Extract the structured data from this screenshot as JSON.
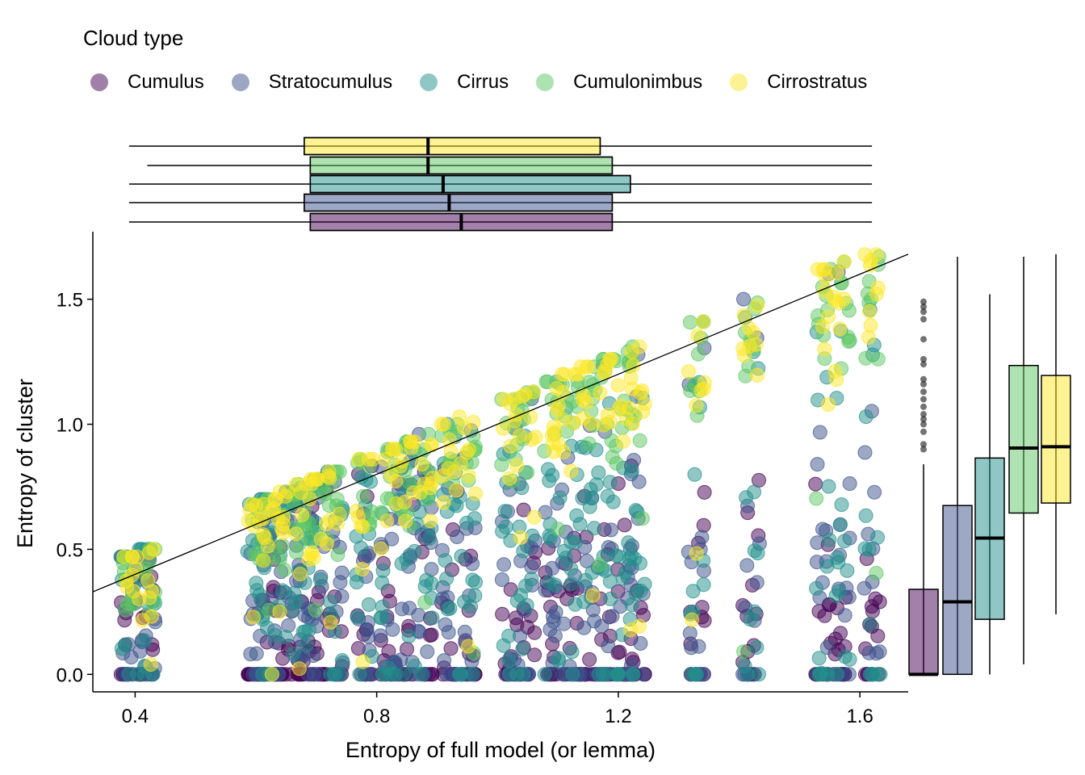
{
  "chart_data": {
    "type": "scatter",
    "title": "",
    "legend": {
      "title": "Cloud type",
      "placement": "top",
      "entries": [
        {
          "label": "Cumulus",
          "color": "#440154"
        },
        {
          "label": "Stratocumulus",
          "color": "#3B528B"
        },
        {
          "label": "Cirrus",
          "color": "#21908C"
        },
        {
          "label": "Cumulonimbus",
          "color": "#5DC863"
        },
        {
          "label": "Cirrostratus",
          "color": "#FDE725"
        }
      ]
    },
    "xlabel": "Entropy of full model (or lemma)",
    "ylabel": "Entropy of cluster",
    "xlim": [
      0.33,
      1.68
    ],
    "ylim": [
      -0.07,
      1.77
    ],
    "xticks": [
      0.4,
      0.8,
      1.2,
      1.6
    ],
    "xtick_labels": [
      "0.4",
      "0.8",
      "1.2",
      "1.6"
    ],
    "yticks": [
      0.0,
      0.5,
      1.0,
      1.5
    ],
    "ytick_labels": [
      "0.0",
      "0.5",
      "1.0",
      "1.5"
    ],
    "grid": false,
    "trend_line": {
      "x": [
        0.33,
        1.68
      ],
      "y": [
        0.33,
        1.68
      ]
    },
    "lemma_x": [
      0.39,
      0.42,
      0.6,
      0.62,
      0.65,
      0.68,
      0.7,
      0.73,
      0.78,
      0.82,
      0.85,
      0.88,
      0.92,
      0.95,
      1.02,
      1.05,
      1.09,
      1.12,
      1.15,
      1.18,
      1.21,
      1.23,
      1.33,
      1.42,
      1.54,
      1.57,
      1.62
    ],
    "top_boxplot": [
      {
        "name": "Cirrostratus",
        "whisker_low": 0.39,
        "q1": 0.68,
        "median": 0.885,
        "q3": 1.17,
        "whisker_high": 1.62
      },
      {
        "name": "Cumulonimbus",
        "whisker_low": 0.42,
        "q1": 0.69,
        "median": 0.885,
        "q3": 1.19,
        "whisker_high": 1.62
      },
      {
        "name": "Cirrus",
        "whisker_low": 0.39,
        "q1": 0.69,
        "median": 0.91,
        "q3": 1.22,
        "whisker_high": 1.62
      },
      {
        "name": "Stratocumulus",
        "whisker_low": 0.39,
        "q1": 0.68,
        "median": 0.92,
        "q3": 1.19,
        "whisker_high": 1.62
      },
      {
        "name": "Cumulus",
        "whisker_low": 0.39,
        "q1": 0.69,
        "median": 0.94,
        "q3": 1.19,
        "whisker_high": 1.62
      }
    ],
    "right_boxplot": [
      {
        "name": "Cumulus",
        "whisker_low": 0.0,
        "q1": 0.0,
        "median": 0.0,
        "q3": 0.34,
        "whisker_high": 0.84,
        "outliers": [
          0.9,
          0.92,
          0.97,
          1.0,
          1.02,
          1.04,
          1.07,
          1.1,
          1.13,
          1.16,
          1.18,
          1.24,
          1.26,
          1.34,
          1.42,
          1.45,
          1.47,
          1.49
        ]
      },
      {
        "name": "Stratocumulus",
        "whisker_low": 0.0,
        "q1": 0.0,
        "median": 0.29,
        "q3": 0.675,
        "whisker_high": 1.67,
        "outliers": []
      },
      {
        "name": "Cirrus",
        "whisker_low": 0.0,
        "q1": 0.22,
        "median": 0.545,
        "q3": 0.865,
        "whisker_high": 1.52,
        "outliers": []
      },
      {
        "name": "Cumulonimbus",
        "whisker_low": 0.04,
        "q1": 0.645,
        "median": 0.905,
        "q3": 1.235,
        "whisker_high": 1.67,
        "outliers": []
      },
      {
        "name": "Cirrostratus",
        "whisker_low": 0.24,
        "q1": 0.685,
        "median": 0.91,
        "q3": 1.195,
        "whisker_high": 1.68,
        "outliers": []
      }
    ]
  }
}
